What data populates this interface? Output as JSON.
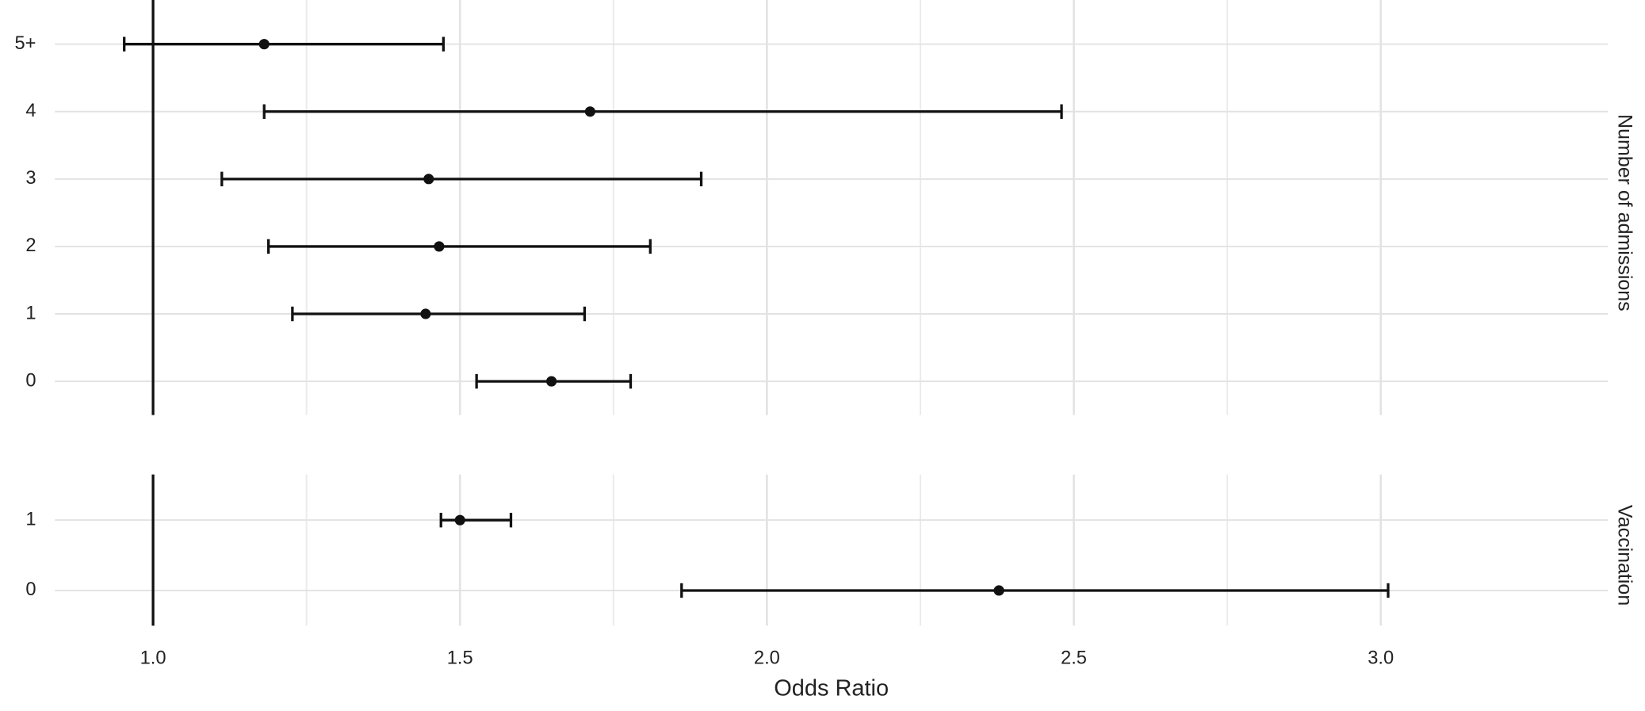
{
  "chart_data": [
    {
      "type": "forest",
      "facet": "Number of admissions",
      "categories": [
        "0",
        "1",
        "2",
        "3",
        "4",
        "5+"
      ],
      "values": [
        1.649,
        1.444,
        1.466,
        1.449,
        1.712,
        1.181
      ],
      "lower": [
        1.527,
        1.227,
        1.188,
        1.112,
        1.181,
        0.953
      ],
      "upper": [
        1.778,
        1.703,
        1.81,
        1.893,
        2.48,
        1.473
      ],
      "color": "#111111",
      "xref": 1.0,
      "xlim": [
        0.84,
        3.37
      ],
      "xticks": [
        1.0,
        1.5,
        2.0,
        2.5,
        3.0
      ],
      "grid": true
    },
    {
      "type": "forest",
      "facet": "Vaccination",
      "categories": [
        "0",
        "1"
      ],
      "values": [
        2.378,
        1.5
      ],
      "lower": [
        1.861,
        1.469
      ],
      "upper": [
        3.012,
        1.583
      ],
      "color": "#111111",
      "xref": 1.0,
      "xlim": [
        0.84,
        3.37
      ],
      "xticks": [
        {
          "value": 1.0,
          "label": "1.0"
        },
        {
          "value": 1.5,
          "label": "1.5"
        },
        {
          "value": 2.0,
          "label": "2.0"
        },
        {
          "value": 2.5,
          "label": "2.5"
        },
        {
          "value": 3.0,
          "label": "3.0"
        }
      ],
      "xlabel": "Odds Ratio",
      "grid": true
    }
  ]
}
